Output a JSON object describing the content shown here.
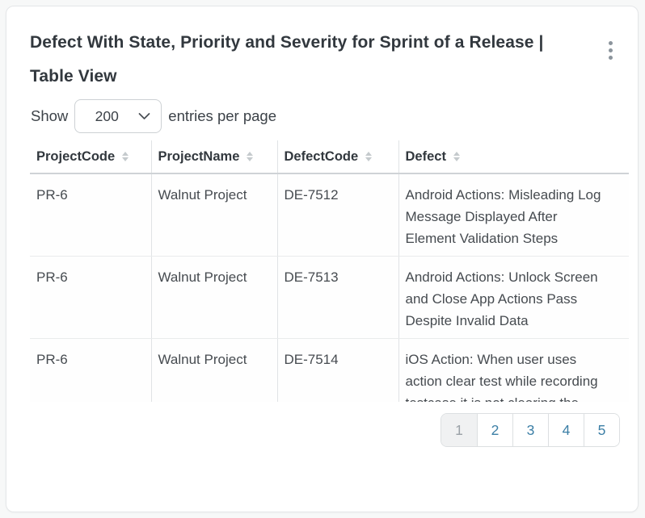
{
  "card": {
    "title": "Defect With State, Priority and Severity for Sprint of a Release | Table View"
  },
  "page_size": {
    "prefix": "Show",
    "selected": "200",
    "suffix": "entries per page"
  },
  "table": {
    "columns": [
      {
        "key": "projectCode",
        "label": "ProjectCode"
      },
      {
        "key": "projectName",
        "label": "ProjectName"
      },
      {
        "key": "defectCode",
        "label": "DefectCode"
      },
      {
        "key": "defect",
        "label": "Defect"
      }
    ],
    "rows": [
      {
        "projectCode": "PR-6",
        "projectName": "Walnut Project",
        "defectCode": "DE-7512",
        "defect": "Android Actions: Misleading Log Message Displayed After Element Validation Steps"
      },
      {
        "projectCode": "PR-6",
        "projectName": "Walnut Project",
        "defectCode": "DE-7513",
        "defect": "Android Actions: Unlock Screen and Close App Actions Pass Despite Invalid Data"
      },
      {
        "projectCode": "PR-6",
        "projectName": "Walnut Project",
        "defectCode": "DE-7514",
        "defect": "iOS Action: When user uses action clear test while recording testcase it is not clearing the"
      }
    ]
  },
  "pagination": {
    "pages": [
      "1",
      "2",
      "3",
      "4",
      "5"
    ],
    "current": "1"
  },
  "colors": {
    "page_background": "#f7f8f8",
    "card_background": "#ffffff",
    "title_text": "#32383e",
    "body_text": "#464b50",
    "pagination_link": "#3c7fa6",
    "pagination_current_text": "#9aa1a7",
    "pagination_current_bg": "#f0f1f2",
    "border_light": "#e0e3e5"
  }
}
